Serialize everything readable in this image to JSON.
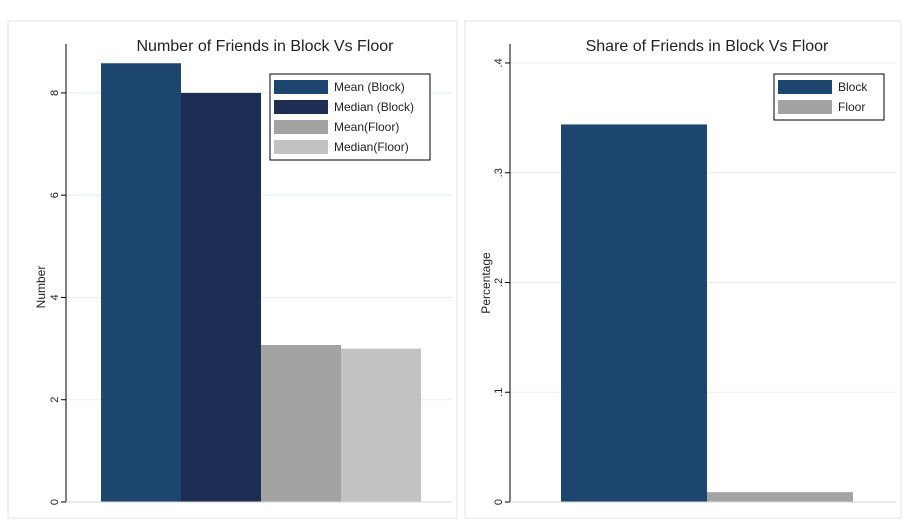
{
  "colors": {
    "block_mean": "#1c466e",
    "block_median": "#1e2d53",
    "floor_mean": "#a3a3a3",
    "floor_median": "#c2c2c2",
    "panel_border": "#dfe5ea",
    "grid": "#e8ecef"
  },
  "chart_data": [
    {
      "type": "bar",
      "title": "Number of Friends in Block Vs Floor",
      "ylabel": "Number",
      "xlabel": "",
      "ylim": [
        0,
        8.8
      ],
      "yticks": [
        "0",
        "2",
        "4",
        "6",
        "8"
      ],
      "ytick_values": [
        0,
        2,
        4,
        6,
        8
      ],
      "grid": true,
      "legend_position": "top-right",
      "series": [
        {
          "name": "Mean (Block)",
          "value": 8.58,
          "color": "#1c466e"
        },
        {
          "name": "Median (Block)",
          "value": 8,
          "color": "#1e2d53"
        },
        {
          "name": "Mean(Floor)",
          "value": 3.07,
          "color": "#a3a3a3"
        },
        {
          "name": "Median(Floor)",
          "value": 3,
          "color": "#c2c2c2"
        }
      ]
    },
    {
      "type": "bar",
      "title": "Share of Friends in Block Vs Floor",
      "ylabel": "Percentage",
      "xlabel": "",
      "ylim": [
        0,
        0.41
      ],
      "yticks": [
        "0",
        ".1",
        ".2",
        ".3",
        ".4"
      ],
      "ytick_values": [
        0,
        0.1,
        0.2,
        0.3,
        0.4
      ],
      "grid": true,
      "legend_position": "top-right",
      "series": [
        {
          "name": "Block",
          "value": 0.344,
          "color": "#1c466e"
        },
        {
          "name": "Floor",
          "value": 0.009,
          "color": "#a3a3a3"
        }
      ]
    }
  ]
}
